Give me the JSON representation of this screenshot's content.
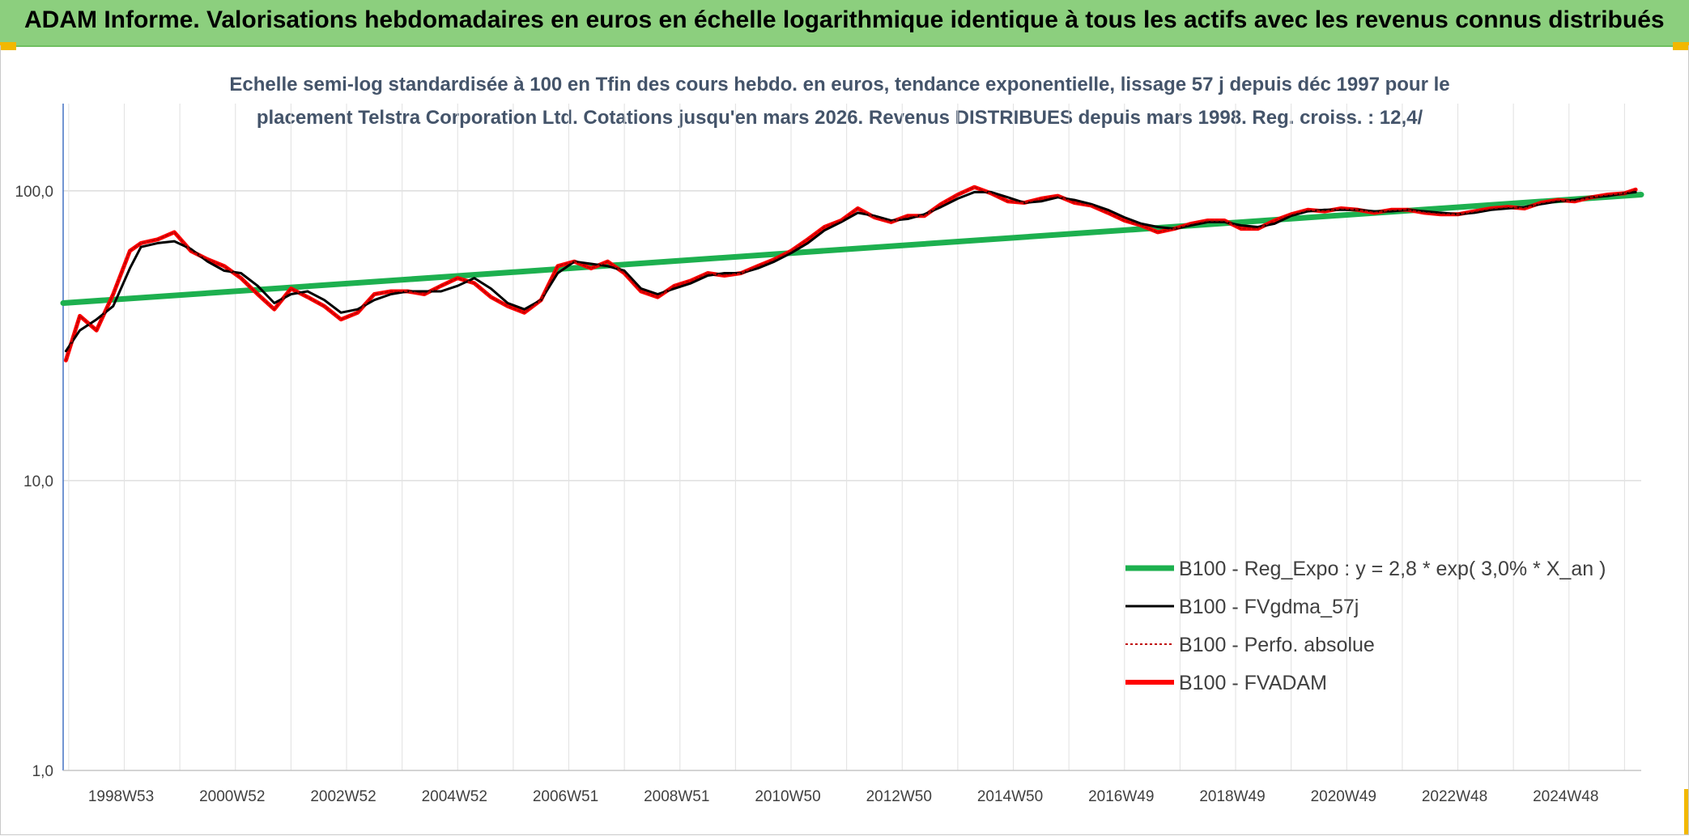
{
  "header": {
    "title": "ADAM Informe. Valorisations hebdomadaires en euros en échelle logarithmique identique à tous les actifs avec les revenus connus distribués"
  },
  "colors": {
    "header_bg": "#8ccf7e",
    "corner": "#f2b800",
    "reg": "#1db04f",
    "fvgdma": "#000000",
    "perfo": "#c00000",
    "fvadam": "#ff0000",
    "grid": "#d9d9d9"
  },
  "chart_data": {
    "type": "line",
    "title_lines": [
      "Echelle semi-log standardisée à 100 en Tfin des cours hebdo. en euros, tendance exponentielle, lissage 57 j depuis déc 1997 pour le",
      "placement Telstra Corporation Ltd. Cotations jusqu'en mars 2026. Revenus DISTRIBUES depuis mars 1998. Reg. croiss. : 12,4/"
    ],
    "y_scale": "log",
    "ylim": [
      1,
      200
    ],
    "y_ticks": [
      {
        "value": 1,
        "label": "1,0"
      },
      {
        "value": 10,
        "label": "10,0"
      },
      {
        "value": 100,
        "label": "100,0"
      }
    ],
    "xlim": [
      1997.9,
      2026.3
    ],
    "x_ticks": [
      {
        "value": 1999.0,
        "label": "1998W53"
      },
      {
        "value": 2001.0,
        "label": "2000W52"
      },
      {
        "value": 2003.0,
        "label": "2002W52"
      },
      {
        "value": 2005.0,
        "label": "2004W52"
      },
      {
        "value": 2007.0,
        "label": "2006W51"
      },
      {
        "value": 2009.0,
        "label": "2008W51"
      },
      {
        "value": 2011.0,
        "label": "2010W50"
      },
      {
        "value": 2013.0,
        "label": "2012W50"
      },
      {
        "value": 2015.0,
        "label": "2014W50"
      },
      {
        "value": 2017.0,
        "label": "2016W49"
      },
      {
        "value": 2019.0,
        "label": "2018W49"
      },
      {
        "value": 2021.0,
        "label": "2020W49"
      },
      {
        "value": 2023.0,
        "label": "2022W48"
      },
      {
        "value": 2025.0,
        "label": "2024W48"
      }
    ],
    "series": [
      {
        "name": "B100 - Reg_Expo : y = 2,8 * exp( 3,0% *  X_an )",
        "style": "regression",
        "x": [
          1997.9,
          2026.3
        ],
        "y": [
          41,
          97
        ]
      },
      {
        "name": "B100 - FVgdma_57j",
        "style": "smoothed",
        "x": [
          1997.95,
          1998.2,
          1998.5,
          1998.8,
          1999.1,
          1999.3,
          1999.6,
          1999.9,
          2000.2,
          2000.5,
          2000.8,
          2001.1,
          2001.4,
          2001.7,
          2002.0,
          2002.3,
          2002.6,
          2002.9,
          2003.2,
          2003.5,
          2003.8,
          2004.1,
          2004.4,
          2004.7,
          2005.0,
          2005.3,
          2005.6,
          2005.9,
          2006.2,
          2006.5,
          2006.8,
          2007.1,
          2007.4,
          2007.7,
          2008.0,
          2008.3,
          2008.6,
          2008.9,
          2009.2,
          2009.5,
          2009.8,
          2010.1,
          2010.4,
          2010.7,
          2011.0,
          2011.3,
          2011.6,
          2011.9,
          2012.2,
          2012.5,
          2012.8,
          2013.1,
          2013.4,
          2013.7,
          2014.0,
          2014.3,
          2014.6,
          2014.9,
          2015.2,
          2015.5,
          2015.8,
          2016.1,
          2016.4,
          2016.7,
          2017.0,
          2017.3,
          2017.6,
          2017.9,
          2018.2,
          2018.5,
          2018.8,
          2019.1,
          2019.4,
          2019.7,
          2020.0,
          2020.3,
          2020.6,
          2020.9,
          2021.2,
          2021.5,
          2021.8,
          2022.1,
          2022.4,
          2022.7,
          2023.0,
          2023.3,
          2023.6,
          2023.9,
          2024.2,
          2024.5,
          2024.8,
          2025.1,
          2025.4,
          2025.7,
          2026.0,
          2026.2
        ],
        "y": [
          28,
          33,
          36,
          40,
          54,
          64,
          66,
          67,
          63,
          57,
          53,
          52,
          47,
          41,
          44,
          45,
          42,
          38,
          39,
          42,
          44,
          45,
          45,
          45,
          47,
          50,
          46,
          41,
          39,
          42,
          52,
          57,
          56,
          55,
          53,
          46,
          44,
          46,
          48,
          51,
          52,
          52,
          54,
          57,
          61,
          66,
          73,
          78,
          84,
          82,
          79,
          80,
          83,
          88,
          94,
          99,
          99,
          95,
          91,
          92,
          95,
          93,
          90,
          86,
          81,
          77,
          75,
          74,
          76,
          78,
          78,
          76,
          75,
          77,
          82,
          85,
          86,
          86,
          86,
          85,
          85,
          86,
          85,
          84,
          83,
          84,
          86,
          87,
          88,
          90,
          92,
          93,
          95,
          96,
          98,
          99
        ]
      },
      {
        "name": "B100 - Perfo. absolue",
        "style": "dotted",
        "x": [
          1997.95,
          1998.2,
          1998.5,
          1998.8,
          1999.1,
          1999.3,
          1999.6,
          1999.9,
          2000.2,
          2000.5,
          2000.8,
          2001.1,
          2001.4,
          2001.7,
          2002.0,
          2002.3,
          2002.6,
          2002.9,
          2003.2,
          2003.5,
          2003.8,
          2004.1,
          2004.4,
          2004.7,
          2005.0,
          2005.3,
          2005.6,
          2005.9,
          2006.2,
          2006.5,
          2006.8,
          2007.1,
          2007.4,
          2007.7,
          2008.0,
          2008.3,
          2008.6,
          2008.9,
          2009.2,
          2009.5,
          2009.8,
          2010.1,
          2010.4,
          2010.7,
          2011.0,
          2011.3,
          2011.6,
          2011.9,
          2012.2,
          2012.5,
          2012.8,
          2013.1,
          2013.4,
          2013.7,
          2014.0,
          2014.3,
          2014.6,
          2014.9,
          2015.2,
          2015.5,
          2015.8,
          2016.1,
          2016.4,
          2016.7,
          2017.0,
          2017.3,
          2017.6,
          2017.9,
          2018.2,
          2018.5,
          2018.8,
          2019.1,
          2019.4,
          2019.7,
          2020.0,
          2020.3,
          2020.6,
          2020.9,
          2021.2,
          2021.5,
          2021.8,
          2022.1,
          2022.4,
          2022.7,
          2023.0,
          2023.3,
          2023.6,
          2023.9,
          2024.2,
          2024.5,
          2024.8,
          2025.1,
          2025.4,
          2025.7,
          2026.0,
          2026.2
        ],
        "y": [
          26,
          37,
          33,
          44,
          62,
          66,
          68,
          72,
          62,
          58,
          55,
          50,
          44,
          39,
          46,
          43,
          40,
          36,
          38,
          44,
          45,
          45,
          44,
          47,
          50,
          48,
          43,
          40,
          38,
          42,
          55,
          57,
          54,
          57,
          52,
          45,
          43,
          47,
          49,
          52,
          51,
          52,
          55,
          58,
          62,
          68,
          75,
          79,
          87,
          81,
          78,
          82,
          82,
          90,
          97,
          103,
          98,
          92,
          91,
          94,
          96,
          91,
          89,
          84,
          79,
          76,
          72,
          74,
          77,
          79,
          79,
          74,
          74,
          79,
          83,
          86,
          85,
          87,
          86,
          84,
          86,
          86,
          84,
          83,
          83,
          85,
          87,
          88,
          87,
          91,
          93,
          92,
          95,
          97,
          98,
          101
        ]
      },
      {
        "name": "B100 - FVADAM",
        "style": "thick",
        "x": [
          1997.95,
          1998.2,
          1998.5,
          1998.8,
          1999.1,
          1999.3,
          1999.6,
          1999.9,
          2000.2,
          2000.5,
          2000.8,
          2001.1,
          2001.4,
          2001.7,
          2002.0,
          2002.3,
          2002.6,
          2002.9,
          2003.2,
          2003.5,
          2003.8,
          2004.1,
          2004.4,
          2004.7,
          2005.0,
          2005.3,
          2005.6,
          2005.9,
          2006.2,
          2006.5,
          2006.8,
          2007.1,
          2007.4,
          2007.7,
          2008.0,
          2008.3,
          2008.6,
          2008.9,
          2009.2,
          2009.5,
          2009.8,
          2010.1,
          2010.4,
          2010.7,
          2011.0,
          2011.3,
          2011.6,
          2011.9,
          2012.2,
          2012.5,
          2012.8,
          2013.1,
          2013.4,
          2013.7,
          2014.0,
          2014.3,
          2014.6,
          2014.9,
          2015.2,
          2015.5,
          2015.8,
          2016.1,
          2016.4,
          2016.7,
          2017.0,
          2017.3,
          2017.6,
          2017.9,
          2018.2,
          2018.5,
          2018.8,
          2019.1,
          2019.4,
          2019.7,
          2020.0,
          2020.3,
          2020.6,
          2020.9,
          2021.2,
          2021.5,
          2021.8,
          2022.1,
          2022.4,
          2022.7,
          2023.0,
          2023.3,
          2023.6,
          2023.9,
          2024.2,
          2024.5,
          2024.8,
          2025.1,
          2025.4,
          2025.7,
          2026.0,
          2026.2
        ],
        "y": [
          26,
          37,
          33,
          44,
          62,
          66,
          68,
          72,
          62,
          58,
          55,
          50,
          44,
          39,
          46,
          43,
          40,
          36,
          38,
          44,
          45,
          45,
          44,
          47,
          50,
          48,
          43,
          40,
          38,
          42,
          55,
          57,
          54,
          57,
          52,
          45,
          43,
          47,
          49,
          52,
          51,
          52,
          55,
          58,
          62,
          68,
          75,
          79,
          87,
          81,
          78,
          82,
          82,
          90,
          97,
          103,
          98,
          92,
          91,
          94,
          96,
          91,
          89,
          84,
          79,
          76,
          72,
          74,
          77,
          79,
          79,
          74,
          74,
          79,
          83,
          86,
          85,
          87,
          86,
          84,
          86,
          86,
          84,
          83,
          83,
          85,
          87,
          88,
          87,
          91,
          93,
          92,
          95,
          97,
          98,
          101
        ]
      }
    ]
  }
}
